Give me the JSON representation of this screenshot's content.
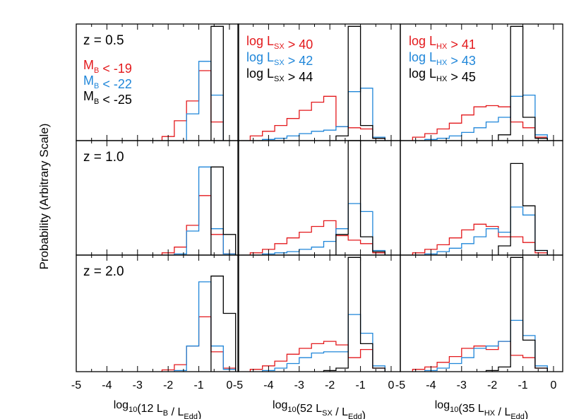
{
  "figure": {
    "ylabel": "Probability (Arbitrary Scale)",
    "colors": {
      "red": "#e3191c",
      "blue": "#1f86d9",
      "black": "#000000"
    }
  },
  "chart_data": {
    "type": "histogram-grid",
    "rows": [
      "z = 0.5",
      "z = 1.0",
      "z = 2.0"
    ],
    "x_tick_labels": [
      "-5",
      "-4",
      "-3",
      "-2",
      "-1",
      "0"
    ],
    "xlim": [
      -5,
      0.3
    ],
    "ylim": [
      0,
      1.0
    ],
    "bin_edges": [
      -5.0,
      -4.6,
      -4.2,
      -3.8,
      -3.4,
      -3.0,
      -2.6,
      -2.2,
      -1.8,
      -1.4,
      -1.0,
      -0.6,
      -0.2,
      0.2
    ],
    "columns": [
      {
        "xlabel_pre": "log",
        "xlabel_sub": "10",
        "xlabel_mid": "(12 L",
        "xlabel_sub2": "B",
        "xlabel_mid2": " / L",
        "xlabel_sub3": "Edd",
        "xlabel_post": ")",
        "legend": [
          {
            "color": "red",
            "main": "M",
            "sub": "B",
            "rest": " < -19"
          },
          {
            "color": "blue",
            "main": "M",
            "sub": "B",
            "rest": " < -22"
          },
          {
            "color": "black",
            "main": "M",
            "sub": "B",
            "rest": " < -25"
          }
        ],
        "panels": [
          {
            "red": [
              0,
              0,
              0,
              0,
              0,
              0,
              0,
              0.035,
              0.17,
              0.34,
              0.6,
              0.16,
              0,
              0
            ],
            "blue": [
              0,
              0,
              0,
              0,
              0,
              0,
              0,
              0,
              0,
              0.23,
              0.68,
              0.39,
              0,
              0
            ],
            "black": [
              0,
              0,
              0,
              0,
              0,
              0,
              0,
              0,
              0,
              0,
              0,
              0.98,
              0,
              0
            ]
          },
          {
            "red": [
              0,
              0,
              0,
              0,
              0,
              0,
              0,
              0.02,
              0.07,
              0.26,
              0.52,
              0.18,
              0.01,
              0
            ],
            "blue": [
              0,
              0,
              0,
              0,
              0,
              0,
              0,
              0,
              0.01,
              0.21,
              0.77,
              0.23,
              0.01,
              0
            ],
            "black": [
              0,
              0,
              0,
              0,
              0,
              0,
              0,
              0,
              0,
              0,
              0,
              0.77,
              0.18,
              0
            ]
          },
          {
            "red": [
              0,
              0,
              0,
              0,
              0,
              0,
              0,
              0.015,
              0.06,
              0.22,
              0.47,
              0.17,
              0.03,
              0
            ],
            "blue": [
              0,
              0,
              0,
              0,
              0,
              0,
              0,
              0,
              0.01,
              0.22,
              0.77,
              0.22,
              0.02,
              0
            ],
            "black": [
              0,
              0,
              0,
              0,
              0,
              0,
              0,
              0,
              0,
              0,
              0,
              0.82,
              0.5,
              0
            ]
          }
        ]
      },
      {
        "xlabel_pre": "log",
        "xlabel_sub": "10",
        "xlabel_mid": "(52 L",
        "xlabel_sub2": "SX",
        "xlabel_mid2": " / L",
        "xlabel_sub3": "Edd",
        "xlabel_post": ")",
        "legend": [
          {
            "color": "red",
            "main": "log L",
            "sub": "SX",
            "rest": " > 40"
          },
          {
            "color": "blue",
            "main": "log L",
            "sub": "SX",
            "rest": " > 42"
          },
          {
            "color": "black",
            "main": "log L",
            "sub": "SX",
            "rest": " > 44"
          }
        ],
        "panels": [
          {
            "red": [
              0,
              0.04,
              0.08,
              0.13,
              0.19,
              0.26,
              0.33,
              0.38,
              0.12,
              0.11,
              0.1,
              0.02,
              0,
              0
            ],
            "blue": [
              0,
              0,
              0.01,
              0.02,
              0.04,
              0.06,
              0.08,
              0.09,
              0.12,
              0.42,
              0.45,
              0.03,
              0,
              0
            ],
            "black": [
              0,
              0,
              0,
              0,
              0,
              0,
              0,
              0,
              0.04,
              0.98,
              0.13,
              0.02,
              0,
              0
            ]
          },
          {
            "red": [
              0,
              0.02,
              0.05,
              0.1,
              0.15,
              0.2,
              0.25,
              0.3,
              0.17,
              0.13,
              0.1,
              0.02,
              0,
              0
            ],
            "blue": [
              0,
              0,
              0.01,
              0.02,
              0.03,
              0.05,
              0.07,
              0.12,
              0.23,
              0.45,
              0.38,
              0.04,
              0,
              0
            ],
            "black": [
              0,
              0,
              0,
              0,
              0,
              0,
              0,
              0,
              0.18,
              1.0,
              0.16,
              0.03,
              0,
              0
            ]
          },
          {
            "red": [
              0,
              0.02,
              0.05,
              0.09,
              0.15,
              0.2,
              0.24,
              0.26,
              0.23,
              0.12,
              0.19,
              0.03,
              0,
              0
            ],
            "blue": [
              0,
              0,
              0.01,
              0.03,
              0.07,
              0.12,
              0.16,
              0.17,
              0.17,
              0.49,
              0.33,
              0.05,
              0,
              0
            ],
            "black": [
              0,
              0,
              0,
              0,
              0,
              0,
              0,
              0.01,
              0.03,
              0.98,
              0.24,
              0.03,
              0,
              0
            ]
          }
        ]
      },
      {
        "xlabel_pre": "log",
        "xlabel_sub": "10",
        "xlabel_mid": "(35 L",
        "xlabel_sub2": "HX",
        "xlabel_mid2": " / L",
        "xlabel_sub3": "Edd",
        "xlabel_post": ")",
        "legend": [
          {
            "color": "red",
            "main": "log L",
            "sub": "HX",
            "rest": " > 41"
          },
          {
            "color": "blue",
            "main": "log L",
            "sub": "HX",
            "rest": " > 43"
          },
          {
            "color": "black",
            "main": "log L",
            "sub": "HX",
            "rest": " > 45"
          }
        ],
        "panels": [
          {
            "red": [
              0,
              0.03,
              0.06,
              0.1,
              0.15,
              0.22,
              0.29,
              0.3,
              0.29,
              0.16,
              0.11,
              0.03,
              0,
              0
            ],
            "blue": [
              0,
              0,
              0.01,
              0.02,
              0.04,
              0.07,
              0.11,
              0.16,
              0.2,
              0.38,
              0.39,
              0.05,
              0,
              0
            ],
            "black": [
              0,
              0,
              0,
              0,
              0,
              0,
              0,
              0,
              0.05,
              0.98,
              0.2,
              0.02,
              0,
              0
            ]
          },
          {
            "red": [
              0,
              0.02,
              0.05,
              0.09,
              0.15,
              0.22,
              0.27,
              0.25,
              0.16,
              0.16,
              0.11,
              0.02,
              0,
              0
            ],
            "blue": [
              0,
              0,
              0.01,
              0.03,
              0.06,
              0.1,
              0.16,
              0.23,
              0.2,
              0.42,
              0.35,
              0.04,
              0,
              0
            ],
            "black": [
              0,
              0,
              0,
              0,
              0,
              0,
              0,
              0,
              0.08,
              0.8,
              0.43,
              0.04,
              0,
              0
            ]
          },
          {
            "red": [
              0,
              0.02,
              0.04,
              0.08,
              0.13,
              0.2,
              0.22,
              0.19,
              0.26,
              0.14,
              0.12,
              0.03,
              0,
              0
            ],
            "blue": [
              0,
              0,
              0.01,
              0.03,
              0.07,
              0.12,
              0.2,
              0.22,
              0.26,
              0.44,
              0.31,
              0.05,
              0,
              0
            ],
            "black": [
              0,
              0,
              0,
              0,
              0,
              0,
              0,
              0.01,
              0.04,
              0.98,
              0.27,
              0.03,
              0,
              0
            ]
          }
        ]
      }
    ]
  }
}
